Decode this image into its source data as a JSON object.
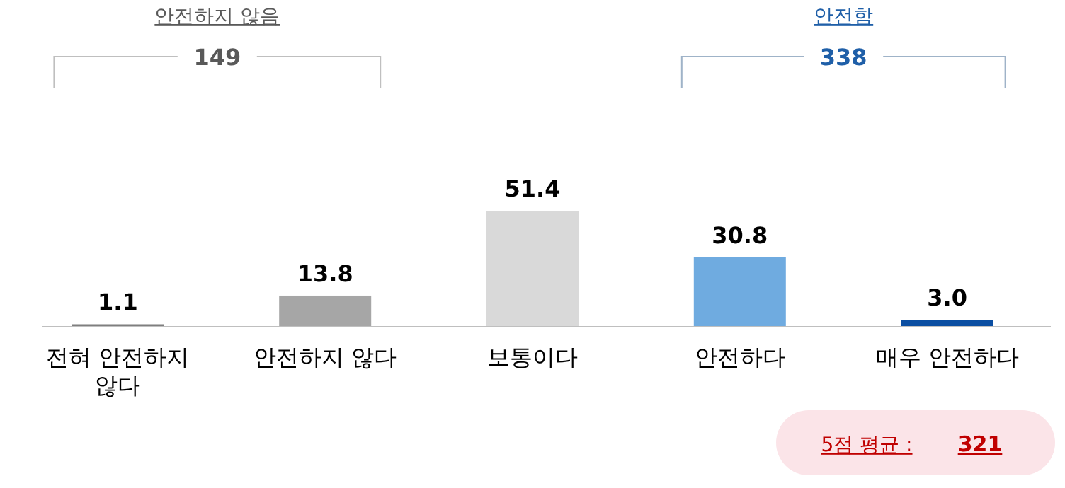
{
  "chart_data": {
    "type": "bar",
    "categories": [
      "전혀 안전하지 않다",
      "안전하지 않다",
      "보통이다",
      "안전하다",
      "매우 안전하다"
    ],
    "values": [
      1.1,
      13.8,
      51.4,
      30.8,
      3.0
    ],
    "value_labels": [
      "1.1",
      "13.8",
      "51.4",
      "30.8",
      "3.0"
    ],
    "colors": [
      "#7f7f7f",
      "#a6a6a6",
      "#d9d9d9",
      "#6fabe0",
      "#0b4ea2"
    ],
    "tick_labels": "x",
    "annotations": [
      "안전하지 않음",
      "149",
      "안전함",
      "338",
      "5점 평균 :",
      "321"
    ]
  }
}
